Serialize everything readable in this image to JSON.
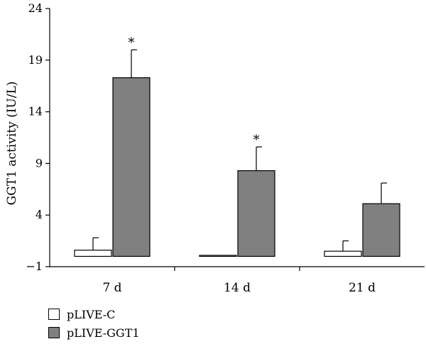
{
  "chart_data": {
    "type": "bar",
    "title": "",
    "xlabel": "",
    "ylabel": "GGT1 activity (IU/L)",
    "ylim": [
      -1,
      24
    ],
    "yticks": [
      -1,
      4,
      9,
      14,
      19,
      24
    ],
    "categories": [
      "7 d",
      "14 d",
      "21 d"
    ],
    "series": [
      {
        "name": "pLIVE-C",
        "color": "#ffffff",
        "values": [
          0.6,
          0.1,
          0.5
        ],
        "errors": [
          1.2,
          0.0,
          1.0
        ]
      },
      {
        "name": "pLIVE-GGT1",
        "color": "#808080",
        "values": [
          17.3,
          8.3,
          5.1
        ],
        "errors": [
          2.7,
          2.3,
          2.0
        ]
      }
    ],
    "annotations": [
      {
        "category": "7 d",
        "series": "pLIVE-GGT1",
        "text": "*"
      },
      {
        "category": "14 d",
        "series": "pLIVE-GGT1",
        "text": "*"
      }
    ],
    "grid": false,
    "legend_position": "bottom-left"
  }
}
